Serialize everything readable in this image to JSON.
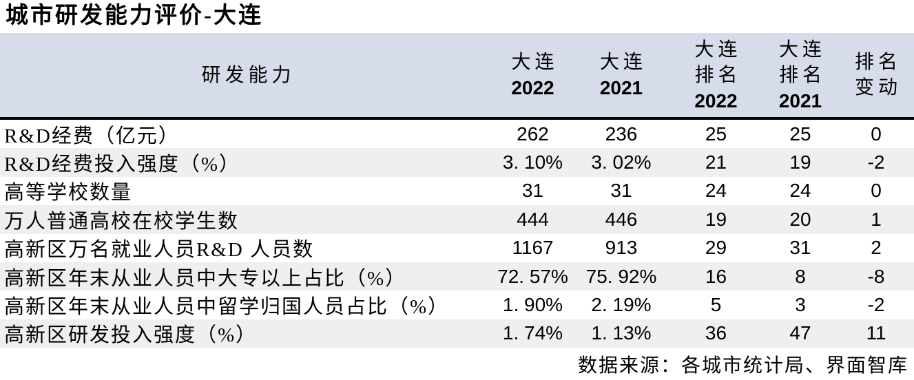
{
  "title": "城市研发能力评价-大连",
  "table": {
    "header": {
      "capability": "研发能力",
      "dalian2022": {
        "l1": "大连",
        "l2": "2022"
      },
      "dalian2021": {
        "l1": "大连",
        "l2": "2021"
      },
      "rank2022": {
        "l1": "大连",
        "l2": "排名",
        "l3": "2022"
      },
      "rank2021": {
        "l1": "大连",
        "l2": "排名",
        "l3": "2021"
      },
      "rankChange": {
        "l1": "排名",
        "l2": "变动"
      }
    },
    "rows": [
      {
        "label": "R&D经费（亿元）",
        "v2022": "262",
        "v2021": "236",
        "r2022": "25",
        "r2021": "25",
        "change": "0"
      },
      {
        "label": "R&D经费投入强度（%）",
        "v2022": "3. 10%",
        "v2021": "3. 02%",
        "r2022": "21",
        "r2021": "19",
        "change": "-2"
      },
      {
        "label": "高等学校数量",
        "v2022": "31",
        "v2021": "31",
        "r2022": "24",
        "r2021": "24",
        "change": "0"
      },
      {
        "label": "万人普通高校在校学生数",
        "v2022": "444",
        "v2021": "446",
        "r2022": "19",
        "r2021": "20",
        "change": "1"
      },
      {
        "label": "高新区万名就业人员R&D 人员数",
        "v2022": "1167",
        "v2021": "913",
        "r2022": "29",
        "r2021": "31",
        "change": "2"
      },
      {
        "label": "高新区年末从业人员中大专以上占比（%）",
        "v2022": "72. 57%",
        "v2021": "75. 92%",
        "r2022": "16",
        "r2021": "8",
        "change": "-8"
      },
      {
        "label": "高新区年末从业人员中留学归国人员占比（%）",
        "v2022": "1. 90%",
        "v2021": "2. 19%",
        "r2022": "5",
        "r2021": "3",
        "change": "-2"
      },
      {
        "label": "高新区研发投入强度（%）",
        "v2022": "1. 74%",
        "v2021": "1. 13%",
        "r2022": "36",
        "r2021": "47",
        "change": "11"
      }
    ]
  },
  "footer": {
    "source": "数据来源：各城市统计局、界面智库"
  },
  "colors": {
    "header_bg": "#D6DCE9",
    "stripe_bg": "#EFEFEF",
    "border": "#000000",
    "text": "#000000"
  }
}
